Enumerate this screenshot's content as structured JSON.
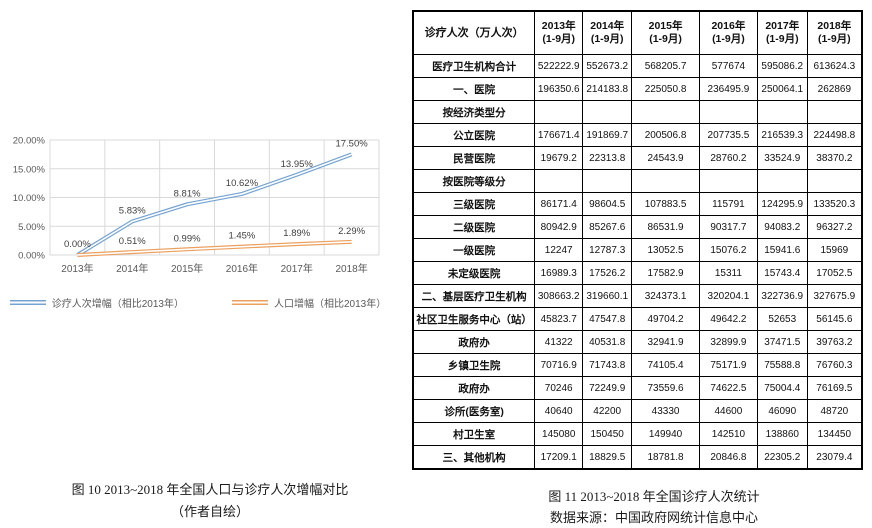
{
  "chart_data": {
    "type": "line",
    "title": "",
    "xlabel": "",
    "ylabel": "",
    "categories": [
      "2013年",
      "2014年",
      "2015年",
      "2016年",
      "2017年",
      "2018年"
    ],
    "series": [
      {
        "name": "诊疗人次增幅（相比2013年）",
        "color": "#74a3d3",
        "values": [
          0.0,
          5.83,
          8.81,
          10.62,
          13.95,
          17.5
        ],
        "labels": [
          "0.00%",
          "5.83%",
          "8.81%",
          "10.62%",
          "13.95%",
          "17.50%"
        ]
      },
      {
        "name": "人口增幅（相比2013年）",
        "color": "#eba05e",
        "values": [
          0.0,
          0.51,
          0.99,
          1.45,
          1.89,
          2.29
        ],
        "labels": [
          "",
          "0.51%",
          "0.99%",
          "1.45%",
          "1.89%",
          "2.29%"
        ]
      }
    ],
    "ylim": [
      0,
      20
    ],
    "ytick_labels": [
      "0.00%",
      "5.00%",
      "10.00%",
      "15.00%",
      "20.00%"
    ],
    "grid": true,
    "legend_position": "bottom"
  },
  "figure10_caption": {
    "line1": "图 10   2013~2018 年全国人口与诊疗人次增幅对比",
    "line2": "（作者自绘）"
  },
  "figure11_caption": {
    "line1": "图 11   2013~2018 年全国诊疗人次统计",
    "line2": "数据来源：中国政府网统计信息中心"
  },
  "table": {
    "corner_header": "诊疗人次（万人次）",
    "column_headers": [
      {
        "year": "2013年",
        "period": "(1-9月)"
      },
      {
        "year": "2014年",
        "period": "(1-9月)"
      },
      {
        "year": "2015年",
        "period": "(1-9月)"
      },
      {
        "year": "2016年",
        "period": "(1-9月)"
      },
      {
        "year": "2017年",
        "period": "(1-9月)"
      },
      {
        "year": "2018年",
        "period": "(1-9月)"
      }
    ],
    "rows": [
      {
        "label": "医疗卫生机构合计",
        "values": [
          "522222.9",
          "552673.2",
          "568205.7",
          "577674",
          "595086.2",
          "613624.3"
        ]
      },
      {
        "label": "一、医院",
        "values": [
          "196350.6",
          "214183.8",
          "225050.8",
          "236495.9",
          "250064.1",
          "262869"
        ]
      },
      {
        "label": "按经济类型分",
        "values": [
          "",
          "",
          "",
          "",
          "",
          ""
        ]
      },
      {
        "label": "公立医院",
        "values": [
          "176671.4",
          "191869.7",
          "200506.8",
          "207735.5",
          "216539.3",
          "224498.8"
        ]
      },
      {
        "label": "民营医院",
        "values": [
          "19679.2",
          "22313.8",
          "24543.9",
          "28760.2",
          "33524.9",
          "38370.2"
        ]
      },
      {
        "label": "按医院等级分",
        "values": [
          "",
          "",
          "",
          "",
          "",
          ""
        ]
      },
      {
        "label": "三级医院",
        "values": [
          "86171.4",
          "98604.5",
          "107883.5",
          "115791",
          "124295.9",
          "133520.3"
        ]
      },
      {
        "label": "二级医院",
        "values": [
          "80942.9",
          "85267.6",
          "86531.9",
          "90317.7",
          "94083.2",
          "96327.2"
        ]
      },
      {
        "label": "一级医院",
        "values": [
          "12247",
          "12787.3",
          "13052.5",
          "15076.2",
          "15941.6",
          "15969"
        ]
      },
      {
        "label": "未定级医院",
        "values": [
          "16989.3",
          "17526.2",
          "17582.9",
          "15311",
          "15743.4",
          "17052.5"
        ]
      },
      {
        "label": "二、基层医疗卫生机构",
        "values": [
          "308663.2",
          "319660.1",
          "324373.1",
          "320204.1",
          "322736.9",
          "327675.9"
        ]
      },
      {
        "label": "社区卫生服务中心（站）",
        "values": [
          "45823.7",
          "47547.8",
          "49704.2",
          "49642.2",
          "52653",
          "56145.6"
        ]
      },
      {
        "label": "政府办",
        "values": [
          "41322",
          "40531.8",
          "32941.9",
          "32899.9",
          "37471.5",
          "39763.2"
        ]
      },
      {
        "label": "乡镇卫生院",
        "values": [
          "70716.9",
          "71743.8",
          "74105.4",
          "75171.9",
          "75588.8",
          "76760.3"
        ]
      },
      {
        "label": "政府办",
        "values": [
          "70246",
          "72249.9",
          "73559.6",
          "74622.5",
          "75004.4",
          "76169.5"
        ]
      },
      {
        "label": "诊所(医务室)",
        "values": [
          "40640",
          "42200",
          "43330",
          "44600",
          "46090",
          "48720"
        ]
      },
      {
        "label": "村卫生室",
        "values": [
          "145080",
          "150450",
          "149940",
          "142510",
          "138860",
          "134450"
        ]
      },
      {
        "label": "三、其他机构",
        "values": [
          "17209.1",
          "18829.5",
          "18781.8",
          "20846.8",
          "22305.2",
          "23079.4"
        ]
      }
    ]
  },
  "colors": {
    "grid": "#d9d9d9",
    "axis_text": "#595959",
    "data_label": "#3f3f3f",
    "table_border": "#000000",
    "series_blue": "#74a3d3",
    "series_orange": "#eba05e"
  }
}
